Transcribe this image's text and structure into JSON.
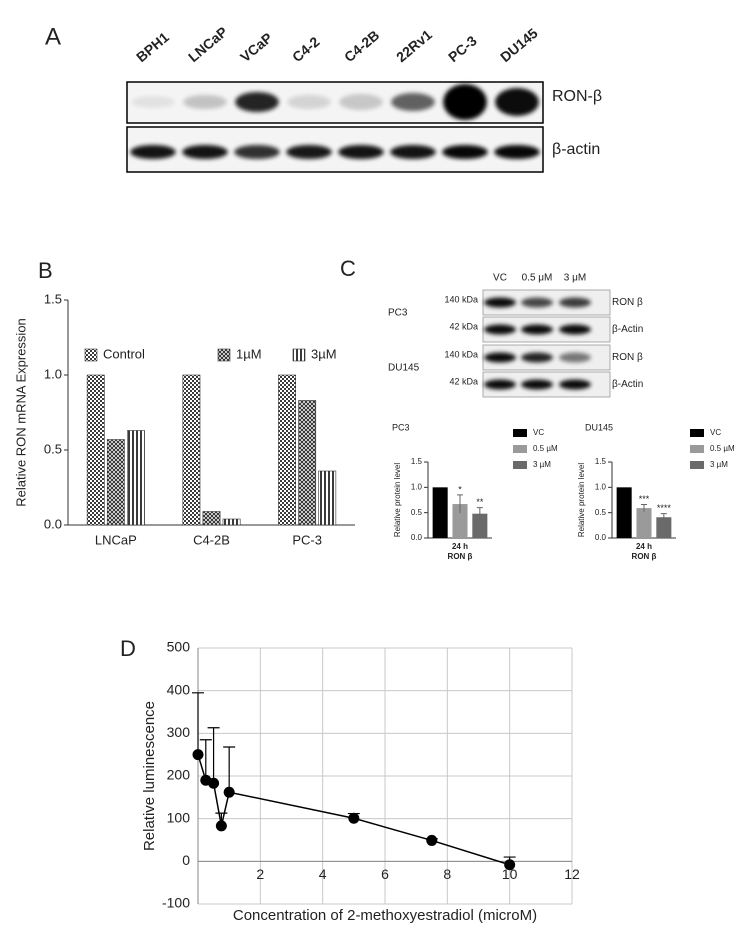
{
  "panel_labels": [
    "A",
    "B",
    "C",
    "D"
  ],
  "blot_a": {
    "lanes": [
      "BPH1",
      "LNCaP",
      "VCaP",
      "C4-2",
      "C4-2B",
      "22Rv1",
      "PC-3",
      "DU145"
    ],
    "rows": [
      "RON-β",
      "β-actin"
    ]
  },
  "blot_c": {
    "columns": [
      "VC",
      "0.5 μM",
      "3 μM"
    ],
    "groups": [
      {
        "name": "PC3",
        "rows": [
          {
            "size": "140 kDa",
            "protein": "RON β"
          },
          {
            "size": "42 kDa",
            "protein": "β-Actin"
          }
        ]
      },
      {
        "name": "DU145",
        "rows": [
          {
            "size": "140 kDa",
            "protein": "RON β"
          },
          {
            "size": "42 kDa",
            "protein": "β-Actin"
          }
        ]
      }
    ]
  },
  "chart_data": [
    {
      "type": "bar",
      "y_label": "Relative RON mRNA Expression",
      "categories": [
        "LNCaP",
        "C4-2B",
        "PC-3"
      ],
      "series": [
        {
          "name": "Control",
          "color": "#3a3a3a",
          "pattern": "checker",
          "values": [
            1,
            1,
            1
          ]
        },
        {
          "name": "1µM",
          "color": "#2a2a2a",
          "pattern": "crosshatch",
          "values": [
            0.57,
            0.09,
            0.83
          ]
        },
        {
          "name": "3µM",
          "color": "#3a3a3a",
          "pattern": "vertical",
          "values": [
            0.63,
            0.04,
            0.36
          ]
        }
      ],
      "ylim": [
        0,
        1.5
      ],
      "yticks": [
        {
          "value": 0,
          "label": "0.0"
        },
        {
          "value": 0.5,
          "label": "0.5"
        },
        {
          "value": 1,
          "label": "1.0"
        },
        {
          "value": 1.5,
          "label": "1.5"
        }
      ],
      "legend": "top"
    },
    {
      "type": "bar",
      "title": "PC3",
      "x_label": "RON β",
      "y_label": "Relative protein level",
      "categories": [
        "24 h"
      ],
      "series": [
        {
          "name": "VC",
          "color": "#000000",
          "values": [
            1
          ]
        },
        {
          "name": "0.5 µM",
          "color": "#9a9a9a",
          "values": [
            0.67
          ],
          "errors": [
            0.18
          ],
          "annotation": "*"
        },
        {
          "name": "3 µM",
          "color": "#6a6a6a",
          "values": [
            0.48
          ],
          "errors": [
            0.12
          ],
          "annotation": "**"
        }
      ],
      "ylim": [
        0,
        1.5
      ],
      "yticks": [
        {
          "value": 0,
          "label": "0.0"
        },
        {
          "value": 0.5,
          "label": "0.5"
        },
        {
          "value": 1,
          "label": "1.0"
        },
        {
          "value": 1.5,
          "label": "1.5"
        }
      ],
      "legend": "right"
    },
    {
      "type": "bar",
      "title": "DU145",
      "x_label": "RON β",
      "y_label": "Relative protein level",
      "categories": [
        "24 h"
      ],
      "series": [
        {
          "name": "VC",
          "color": "#000000",
          "values": [
            1
          ]
        },
        {
          "name": "0.5 µM",
          "color": "#9a9a9a",
          "values": [
            0.59
          ],
          "errors": [
            0.07
          ],
          "annotation": "***"
        },
        {
          "name": "3 µM",
          "color": "#6a6a6a",
          "values": [
            0.41
          ],
          "errors": [
            0.07
          ],
          "annotation": "****"
        }
      ],
      "ylim": [
        0,
        1.5
      ],
      "yticks": [
        {
          "value": 0,
          "label": "0.0"
        },
        {
          "value": 0.5,
          "label": "0.5"
        },
        {
          "value": 1,
          "label": "1.0"
        },
        {
          "value": 1.5,
          "label": "1.5"
        }
      ],
      "legend": "right"
    },
    {
      "type": "line",
      "x_label": "Concentration of 2-methoxyestradiol (microM)",
      "y_label": "Relative luminescence",
      "x": [
        0,
        0.25,
        0.5,
        0.75,
        1,
        5,
        7.5,
        10
      ],
      "series": [
        {
          "color": "#000000",
          "values": [
            250,
            190,
            183,
            83,
            162,
            101,
            49,
            -8
          ],
          "errors": [
            145,
            95,
            130,
            30,
            106,
            11,
            4,
            18
          ]
        }
      ],
      "xlim": [
        0,
        12
      ],
      "xticks": [
        2,
        4,
        6,
        8,
        10,
        12
      ],
      "ylim": [
        -100,
        500
      ],
      "yticks": [
        -100,
        0,
        100,
        200,
        300,
        400,
        500
      ],
      "grid": true
    }
  ]
}
